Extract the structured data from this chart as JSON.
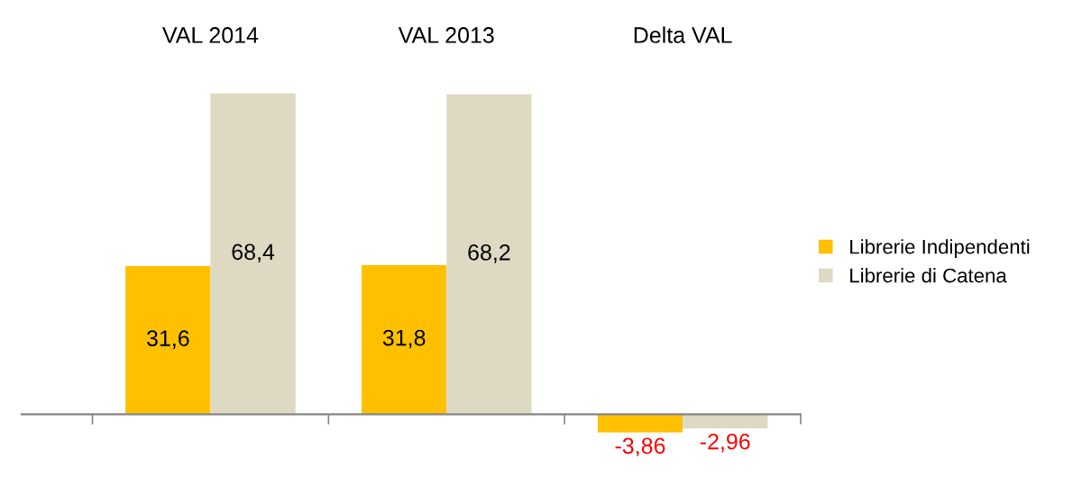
{
  "chart_data": {
    "type": "bar",
    "categories": [
      "VAL 2014",
      "VAL 2013",
      "Delta VAL"
    ],
    "series": [
      {
        "name": "Librerie Indipendenti",
        "color": "#ffc000",
        "values": [
          31.6,
          31.8,
          -3.86
        ],
        "value_labels": [
          "31,6",
          "31,8",
          "-3,86"
        ]
      },
      {
        "name": "Librerie di Catena",
        "color": "#ddd9c3",
        "values": [
          68.4,
          68.2,
          -2.96
        ],
        "value_labels": [
          "68,4",
          "68,2",
          "-2,96"
        ]
      }
    ],
    "legend": "right",
    "grid": false
  }
}
